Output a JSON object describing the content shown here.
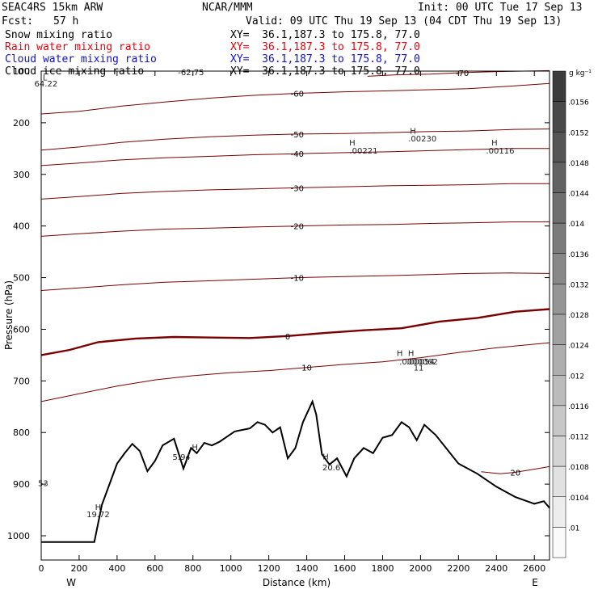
{
  "header": {
    "model": "SEAC4RS 15km ARW",
    "org": "NCAR/MMM",
    "init": "Init: 00 UTC Tue 17 Sep 13",
    "fcst_label": "Fcst:",
    "fcst_value": "57 h",
    "valid": "Valid: 09 UTC Thu 19 Sep 13 (04 CDT Thu 19 Sep 13)"
  },
  "fields": [
    {
      "name": "Snow mixing ratio",
      "xy": "XY=  36.1,187.3 to 175.8, 77.0",
      "color": "#000000"
    },
    {
      "name": "Rain water mixing ratio",
      "xy": "XY=  36.1,187.3 to 175.8, 77.0",
      "color": "#e8000b"
    },
    {
      "name": "Cloud water mixing ratio",
      "xy": "XY=  36.1,187.3 to 175.8, 77.0",
      "color": "#1010d0"
    },
    {
      "name": "Cloud ice mixing ratio",
      "xy": "XY=  36.1,187.3 to 175.8, 77.0",
      "color": "#000000"
    }
  ],
  "chart_data": {
    "type": "line",
    "xlabel": "Distance (km)",
    "ylabel": "Pressure (hPa)",
    "x_ticks": [
      0,
      200,
      400,
      600,
      800,
      1000,
      1200,
      1400,
      1600,
      1800,
      2000,
      2200,
      2400,
      2600
    ],
    "y_ticks": [
      100,
      200,
      300,
      400,
      500,
      600,
      700,
      800,
      900,
      1000
    ],
    "xlim": [
      0,
      2680
    ],
    "ylim": [
      100,
      1050
    ],
    "y_direction": "pressure decreasing upward",
    "x_end_labels": {
      "left": "W",
      "right": "E"
    },
    "temperature_contours": [
      {
        "label": "-70",
        "points": [
          [
            1720,
            110
          ],
          [
            1880,
            107
          ],
          [
            2050,
            106
          ],
          [
            2220,
            103
          ],
          [
            2400,
            101
          ],
          [
            2680,
            99
          ]
        ]
      },
      {
        "label": "-60",
        "points": [
          [
            0,
            183
          ],
          [
            200,
            178
          ],
          [
            420,
            168
          ],
          [
            650,
            160
          ],
          [
            900,
            152
          ],
          [
            1120,
            147
          ],
          [
            1350,
            143
          ],
          [
            1600,
            140
          ],
          [
            1850,
            138
          ],
          [
            2050,
            136
          ],
          [
            2250,
            134
          ],
          [
            2480,
            129
          ],
          [
            2680,
            124
          ]
        ]
      },
      {
        "label": "-50",
        "points": [
          [
            0,
            253
          ],
          [
            200,
            247
          ],
          [
            420,
            238
          ],
          [
            650,
            232
          ],
          [
            900,
            227
          ],
          [
            1120,
            224
          ],
          [
            1350,
            222
          ],
          [
            1600,
            221
          ],
          [
            1850,
            219
          ],
          [
            2050,
            217
          ],
          [
            2250,
            216
          ],
          [
            2480,
            213
          ],
          [
            2680,
            212
          ]
        ]
      },
      {
        "label": "-40",
        "points": [
          [
            0,
            283
          ],
          [
            200,
            278
          ],
          [
            420,
            272
          ],
          [
            650,
            268
          ],
          [
            900,
            265
          ],
          [
            1120,
            262
          ],
          [
            1350,
            260
          ],
          [
            1600,
            258
          ],
          [
            1850,
            256
          ],
          [
            2050,
            254
          ],
          [
            2250,
            252
          ],
          [
            2480,
            250
          ],
          [
            2680,
            250
          ]
        ]
      },
      {
        "label": "-30",
        "points": [
          [
            0,
            348
          ],
          [
            200,
            343
          ],
          [
            420,
            337
          ],
          [
            650,
            333
          ],
          [
            900,
            330
          ],
          [
            1120,
            328
          ],
          [
            1350,
            326
          ],
          [
            1600,
            324
          ],
          [
            1850,
            322
          ],
          [
            2050,
            321
          ],
          [
            2250,
            320
          ],
          [
            2480,
            318
          ],
          [
            2680,
            318
          ]
        ]
      },
      {
        "label": "-20",
        "points": [
          [
            0,
            420
          ],
          [
            200,
            415
          ],
          [
            420,
            410
          ],
          [
            650,
            406
          ],
          [
            900,
            404
          ],
          [
            1120,
            402
          ],
          [
            1350,
            400
          ],
          [
            1600,
            398
          ],
          [
            1850,
            397
          ],
          [
            2050,
            395
          ],
          [
            2250,
            394
          ],
          [
            2480,
            392
          ],
          [
            2680,
            392
          ]
        ]
      },
      {
        "label": "-10",
        "points": [
          [
            0,
            525
          ],
          [
            200,
            520
          ],
          [
            420,
            514
          ],
          [
            650,
            509
          ],
          [
            900,
            506
          ],
          [
            1120,
            503
          ],
          [
            1350,
            500
          ],
          [
            1600,
            498
          ],
          [
            1850,
            496
          ],
          [
            2050,
            494
          ],
          [
            2250,
            492
          ],
          [
            2480,
            491
          ],
          [
            2680,
            492
          ]
        ]
      },
      {
        "label": "0",
        "bold": true,
        "points": [
          [
            0,
            650
          ],
          [
            150,
            640
          ],
          [
            300,
            625
          ],
          [
            500,
            618
          ],
          [
            700,
            615
          ],
          [
            900,
            616
          ],
          [
            1100,
            617
          ],
          [
            1300,
            613
          ],
          [
            1500,
            607
          ],
          [
            1700,
            602
          ],
          [
            1900,
            598
          ],
          [
            2100,
            585
          ],
          [
            2300,
            578
          ],
          [
            2500,
            566
          ],
          [
            2680,
            561
          ]
        ]
      },
      {
        "label": "10",
        "points": [
          [
            0,
            740
          ],
          [
            200,
            725
          ],
          [
            400,
            710
          ],
          [
            600,
            698
          ],
          [
            800,
            690
          ],
          [
            1000,
            684
          ],
          [
            1200,
            680
          ],
          [
            1400,
            674
          ],
          [
            1600,
            668
          ],
          [
            1800,
            663
          ],
          [
            2000,
            655
          ],
          [
            2200,
            645
          ],
          [
            2400,
            636
          ],
          [
            2680,
            626
          ]
        ]
      },
      {
        "label": "20",
        "points": [
          [
            2320,
            876
          ],
          [
            2420,
            880
          ],
          [
            2500,
            877
          ],
          [
            2600,
            871
          ],
          [
            2680,
            866
          ]
        ]
      }
    ],
    "terrain": [
      [
        0,
        1012
      ],
      [
        280,
        1012
      ],
      [
        320,
        940
      ],
      [
        360,
        900
      ],
      [
        400,
        860
      ],
      [
        440,
        840
      ],
      [
        480,
        822
      ],
      [
        520,
        836
      ],
      [
        560,
        875
      ],
      [
        600,
        855
      ],
      [
        640,
        825
      ],
      [
        700,
        812
      ],
      [
        750,
        870
      ],
      [
        790,
        830
      ],
      [
        820,
        840
      ],
      [
        860,
        820
      ],
      [
        900,
        825
      ],
      [
        940,
        818
      ],
      [
        980,
        808
      ],
      [
        1020,
        798
      ],
      [
        1060,
        795
      ],
      [
        1100,
        792
      ],
      [
        1140,
        780
      ],
      [
        1180,
        785
      ],
      [
        1220,
        800
      ],
      [
        1260,
        790
      ],
      [
        1300,
        850
      ],
      [
        1340,
        830
      ],
      [
        1380,
        780
      ],
      [
        1430,
        740
      ],
      [
        1450,
        765
      ],
      [
        1480,
        842
      ],
      [
        1520,
        862
      ],
      [
        1560,
        850
      ],
      [
        1610,
        885
      ],
      [
        1650,
        850
      ],
      [
        1700,
        830
      ],
      [
        1750,
        840
      ],
      [
        1800,
        810
      ],
      [
        1850,
        805
      ],
      [
        1900,
        780
      ],
      [
        1940,
        790
      ],
      [
        1980,
        815
      ],
      [
        2020,
        785
      ],
      [
        2080,
        805
      ],
      [
        2200,
        860
      ],
      [
        2300,
        880
      ],
      [
        2400,
        905
      ],
      [
        2500,
        925
      ],
      [
        2600,
        938
      ],
      [
        2650,
        933
      ],
      [
        2680,
        946
      ]
    ],
    "annotations": [
      {
        "text": "L",
        "x": 20,
        "y": 118
      },
      {
        "text": "64.22",
        "x": 25,
        "y": 130
      },
      {
        "text": "-62.75",
        "x": 790,
        "y": 108
      },
      {
        "text": "H",
        "x": 1640,
        "y": 244
      },
      {
        "text": ".00221",
        "x": 1700,
        "y": 260
      },
      {
        "text": "H",
        "x": 1960,
        "y": 221
      },
      {
        "text": ".00230",
        "x": 2010,
        "y": 236
      },
      {
        "text": "H",
        "x": 2390,
        "y": 244
      },
      {
        "text": ".00116",
        "x": 2420,
        "y": 260
      },
      {
        "text": "H",
        "x": 810,
        "y": 834
      },
      {
        "text": "5.94",
        "x": 740,
        "y": 853
      },
      {
        "text": "H",
        "x": 1500,
        "y": 852
      },
      {
        "text": "20.6",
        "x": 1530,
        "y": 873
      },
      {
        "text": "H",
        "x": 300,
        "y": 950
      },
      {
        "text": "19.72",
        "x": 300,
        "y": 964
      },
      {
        "text": "H",
        "x": 1890,
        "y": 652
      },
      {
        "text": "H",
        "x": 1950,
        "y": 652
      },
      {
        "text": ".0000062",
        "x": 1990,
        "y": 668
      },
      {
        "text": ".00054",
        "x": 2000,
        "y": 668
      },
      {
        "text": "11",
        "x": 1990,
        "y": 680
      },
      {
        "text": "53",
        "x": 10,
        "y": 904
      }
    ],
    "colorbar": {
      "unit": "g kg⁻¹",
      "labels": [
        ".0156",
        ".0152",
        ".0148",
        ".0144",
        ".014",
        ".0136",
        ".0132",
        ".0128",
        ".0124",
        ".012",
        ".0116",
        ".0112",
        ".0108",
        ".0104",
        ".01"
      ]
    }
  }
}
